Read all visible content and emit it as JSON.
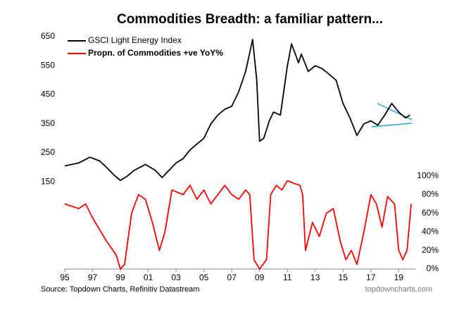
{
  "chart_data": {
    "type": "line",
    "title": "Commodities Breadth: a familiar pattern...",
    "source": "Source: Topdown Charts, Refinitiv Datastream",
    "website": "topdowncharts.com",
    "xlim": [
      1995,
      2020.2
    ],
    "xticks": [
      {
        "value": 1995,
        "label": "95"
      },
      {
        "value": 1997,
        "label": "97"
      },
      {
        "value": 1999,
        "label": "99"
      },
      {
        "value": 2001,
        "label": "01"
      },
      {
        "value": 2003,
        "label": "03"
      },
      {
        "value": 2005,
        "label": "05"
      },
      {
        "value": 2007,
        "label": "07"
      },
      {
        "value": 2009,
        "label": "09"
      },
      {
        "value": 2011,
        "label": "11"
      },
      {
        "value": 2013,
        "label": "13"
      },
      {
        "value": 2015,
        "label": "15"
      },
      {
        "value": 2017,
        "label": "17"
      },
      {
        "value": 2019,
        "label": "19"
      }
    ],
    "ylim": [
      -150,
      650
    ],
    "yticks": [
      150,
      250,
      350,
      450,
      550,
      650
    ],
    "y2lim": [
      0,
      250
    ],
    "y2ticks": [
      {
        "value": 0,
        "label": "0%"
      },
      {
        "value": 20,
        "label": "20%"
      },
      {
        "value": 40,
        "label": "40%"
      },
      {
        "value": 60,
        "label": "60%"
      },
      {
        "value": 80,
        "label": "80%"
      },
      {
        "value": 100,
        "label": "100%"
      }
    ],
    "grid": false,
    "series": [
      {
        "name": "GSCI Light Energy Index",
        "color": "#000000",
        "x": [
          1995,
          1996,
          1996.8,
          1997.5,
          1998,
          1998.5,
          1999,
          1999.5,
          2000,
          2000.8,
          2001.5,
          2002,
          2002.5,
          2003,
          2003.5,
          2004,
          2004.5,
          2005,
          2005.5,
          2006,
          2006.5,
          2007,
          2007.5,
          2008,
          2008.5,
          2008.8,
          2009,
          2009.3,
          2009.7,
          2010,
          2010.5,
          2011,
          2011.3,
          2011.8,
          2012,
          2012.5,
          2013,
          2013.5,
          2014,
          2014.5,
          2015,
          2015.5,
          2016,
          2016.5,
          2017,
          2017.5,
          2018,
          2018.5,
          2019,
          2019.5,
          2019.8
        ],
        "values": [
          205,
          215,
          235,
          222,
          200,
          175,
          155,
          170,
          190,
          210,
          190,
          165,
          190,
          215,
          230,
          260,
          280,
          300,
          350,
          380,
          400,
          410,
          460,
          530,
          640,
          500,
          290,
          300,
          360,
          390,
          380,
          550,
          625,
          560,
          590,
          530,
          550,
          540,
          520,
          500,
          420,
          370,
          310,
          350,
          360,
          345,
          380,
          420,
          390,
          370,
          380
        ]
      },
      {
        "name": "Propn. of Commodities +ve YoY%",
        "color": "#ff0000",
        "axis": "y2",
        "x": [
          1995,
          1996,
          1996.5,
          1997,
          1998,
          1998.7,
          1999,
          1999.3,
          1999.8,
          2000.3,
          2000.8,
          2001.3,
          2001.8,
          2002.2,
          2002.7,
          2003.5,
          2004,
          2004.5,
          2005,
          2005.5,
          2006,
          2006.5,
          2007,
          2007.5,
          2008,
          2008.3,
          2008.6,
          2009,
          2009.5,
          2009.8,
          2010.2,
          2010.6,
          2011,
          2011.5,
          2011.9,
          2012.1,
          2012.3,
          2012.8,
          2013.3,
          2013.8,
          2014.3,
          2014.8,
          2015.2,
          2015.6,
          2016,
          2016.5,
          2017,
          2017.4,
          2017.8,
          2018.2,
          2018.7,
          2019,
          2019.3,
          2019.6,
          2019.9
        ],
        "values": [
          70,
          65,
          70,
          55,
          30,
          15,
          0,
          5,
          60,
          80,
          75,
          50,
          20,
          40,
          85,
          80,
          90,
          75,
          85,
          70,
          80,
          90,
          80,
          75,
          85,
          80,
          10,
          0,
          10,
          80,
          90,
          85,
          95,
          92,
          90,
          80,
          20,
          50,
          35,
          60,
          65,
          30,
          10,
          20,
          5,
          40,
          80,
          70,
          45,
          78,
          70,
          20,
          10,
          20,
          70
        ]
      }
    ]
  }
}
